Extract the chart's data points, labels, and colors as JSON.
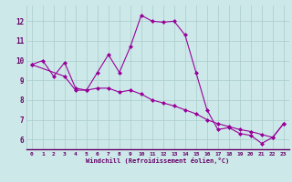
{
  "xlabel": "Windchill (Refroidissement éolien,°C)",
  "bg_color": "#cce8e8",
  "line_color": "#990099",
  "marker": "D",
  "markersize": 2,
  "linewidth": 0.8,
  "xlim": [
    -0.5,
    23.5
  ],
  "ylim": [
    5.5,
    12.8
  ],
  "xticks": [
    0,
    1,
    2,
    3,
    4,
    5,
    6,
    7,
    8,
    9,
    10,
    11,
    12,
    13,
    14,
    15,
    16,
    17,
    18,
    19,
    20,
    21,
    22,
    23
  ],
  "yticks": [
    6,
    7,
    8,
    9,
    10,
    11,
    12
  ],
  "grid_color": "#aacccc",
  "series1": [
    [
      0,
      9.8
    ],
    [
      1,
      10.0
    ],
    [
      2,
      9.2
    ],
    [
      3,
      9.9
    ],
    [
      4,
      8.6
    ],
    [
      5,
      8.5
    ],
    [
      6,
      9.4
    ],
    [
      7,
      10.3
    ],
    [
      8,
      9.4
    ],
    [
      9,
      10.7
    ],
    [
      10,
      12.3
    ],
    [
      11,
      12.0
    ],
    [
      12,
      11.95
    ],
    [
      13,
      12.0
    ],
    [
      14,
      11.3
    ],
    [
      15,
      9.4
    ],
    [
      16,
      7.5
    ],
    [
      17,
      6.5
    ],
    [
      18,
      6.6
    ],
    [
      19,
      6.3
    ],
    [
      20,
      6.2
    ],
    [
      21,
      5.8
    ],
    [
      22,
      6.1
    ],
    [
      23,
      6.8
    ]
  ],
  "series2": [
    [
      0,
      9.8
    ],
    [
      3,
      9.2
    ],
    [
      4,
      8.5
    ],
    [
      5,
      8.5
    ],
    [
      6,
      8.6
    ],
    [
      7,
      8.6
    ],
    [
      8,
      8.4
    ],
    [
      9,
      8.5
    ],
    [
      10,
      8.3
    ],
    [
      11,
      8.0
    ],
    [
      12,
      7.85
    ],
    [
      13,
      7.7
    ],
    [
      14,
      7.5
    ],
    [
      15,
      7.3
    ],
    [
      16,
      7.0
    ],
    [
      17,
      6.8
    ],
    [
      18,
      6.65
    ],
    [
      19,
      6.5
    ],
    [
      20,
      6.4
    ],
    [
      21,
      6.25
    ],
    [
      22,
      6.1
    ],
    [
      23,
      6.8
    ]
  ]
}
